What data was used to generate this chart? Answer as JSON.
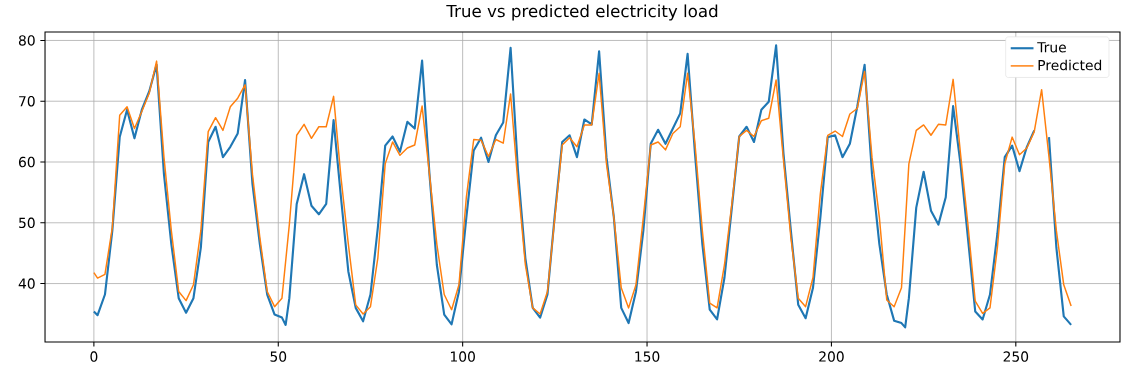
{
  "chart_data": {
    "type": "line",
    "title": "True vs predicted electricity load",
    "xlim": [
      -13.25,
      278.25
    ],
    "ylim": [
      30.4,
      81.4
    ],
    "xticks": [
      0,
      50,
      100,
      150,
      200,
      250
    ],
    "yticks": [
      40,
      50,
      60,
      70,
      80
    ],
    "grid": true,
    "legend": "top right",
    "marker": "none",
    "line_style": "solid",
    "series": [
      {
        "name": "True",
        "color": "#1f77b4",
        "x": [
          0,
          1,
          3,
          5,
          7,
          9,
          11,
          13,
          15,
          17,
          19,
          21,
          23,
          25,
          27,
          29,
          31,
          33,
          35,
          37,
          39,
          41,
          43,
          45,
          47,
          49,
          51,
          52,
          53,
          55,
          57,
          59,
          61,
          63,
          65,
          67,
          69,
          71,
          73,
          75,
          77,
          79,
          81,
          83,
          85,
          87,
          89,
          91,
          93,
          95,
          97,
          99,
          101,
          103,
          105,
          107,
          109,
          111,
          113,
          115,
          117,
          119,
          121,
          123,
          125,
          127,
          129,
          131,
          133,
          135,
          137,
          139,
          141,
          143,
          145,
          147,
          149,
          151,
          153,
          155,
          157,
          159,
          161,
          163,
          165,
          167,
          169,
          171,
          173,
          175,
          177,
          179,
          181,
          183,
          185,
          187,
          189,
          191,
          193,
          195,
          197,
          199,
          201,
          203,
          205,
          207,
          209,
          211,
          213,
          215,
          217,
          219,
          220,
          221,
          223,
          225,
          227,
          229,
          231,
          233,
          235,
          237,
          239,
          241,
          243,
          245,
          247,
          249,
          251,
          253,
          255,
          257,
          259,
          261,
          263,
          265
        ],
        "values": [
          35.4,
          34.8,
          38.2,
          48.7,
          64.1,
          68.6,
          63.9,
          68.6,
          71.6,
          76,
          58,
          46.5,
          37.6,
          35.2,
          37.6,
          45.9,
          63.3,
          65.8,
          60.8,
          62.5,
          64.7,
          73.5,
          56.4,
          46.5,
          38.2,
          34.9,
          34.4,
          33.2,
          37.6,
          53.1,
          58,
          52.8,
          51.4,
          53.1,
          66.9,
          54.2,
          42,
          36,
          33.8,
          38.2,
          49.2,
          62.7,
          64.2,
          61.7,
          66.6,
          65.5,
          76.7,
          58,
          43.1,
          34.9,
          33.3,
          38.7,
          50.9,
          61.9,
          64,
          60,
          64.4,
          66.5,
          78.8,
          58.6,
          44.2,
          36,
          34.4,
          38.2,
          51.4,
          63.3,
          64.4,
          60.8,
          67,
          66.2,
          78.2,
          60.8,
          50.9,
          36,
          33.5,
          38.7,
          48.7,
          63,
          65.3,
          63,
          65.5,
          68,
          77.8,
          61.4,
          46.5,
          35.7,
          34.1,
          41,
          52.5,
          64.2,
          65.8,
          63.3,
          68.6,
          69.9,
          79.2,
          61.4,
          48.7,
          36.5,
          34.3,
          39.3,
          50.9,
          64.1,
          64.4,
          60.8,
          63,
          69.1,
          76,
          58,
          46.5,
          38.2,
          33.9,
          33.5,
          32.8,
          37.6,
          52.5,
          58.4,
          52,
          49.7,
          54.2,
          69.2,
          59.7,
          47.6,
          35.4,
          34.1,
          38.2,
          48.2,
          60.8,
          62.7,
          58.5,
          62.5,
          65.2,
          null,
          64.1,
          45.9,
          34.6,
          33.2
        ]
      },
      {
        "name": "Predicted",
        "color": "#ff7f0e",
        "x": [
          0,
          1,
          3,
          5,
          7,
          9,
          11,
          13,
          15,
          17,
          19,
          21,
          23,
          25,
          27,
          29,
          31,
          33,
          35,
          37,
          39,
          41,
          43,
          45,
          47,
          49,
          51,
          53,
          55,
          57,
          59,
          61,
          63,
          65,
          67,
          69,
          71,
          73,
          75,
          77,
          79,
          81,
          83,
          85,
          87,
          89,
          91,
          93,
          95,
          97,
          99,
          101,
          103,
          105,
          107,
          109,
          111,
          113,
          115,
          117,
          119,
          121,
          123,
          125,
          127,
          129,
          131,
          133,
          135,
          137,
          139,
          141,
          143,
          145,
          147,
          149,
          151,
          153,
          155,
          157,
          159,
          161,
          163,
          165,
          167,
          169,
          171,
          173,
          175,
          177,
          179,
          181,
          183,
          185,
          187,
          189,
          191,
          193,
          195,
          197,
          199,
          201,
          203,
          205,
          207,
          209,
          211,
          213,
          215,
          217,
          219,
          221,
          223,
          225,
          227,
          229,
          231,
          233,
          235,
          237,
          239,
          241,
          243,
          245,
          247,
          249,
          251,
          253,
          255,
          257,
          259,
          261,
          263,
          265
        ],
        "values": [
          41.8,
          40.9,
          41.5,
          49.2,
          67.7,
          69.1,
          65.5,
          68.3,
          71.3,
          76.6,
          60.8,
          48.7,
          38.7,
          37.2,
          39.8,
          48.7,
          65,
          67.3,
          65.2,
          69.1,
          70.5,
          72.7,
          58,
          47.6,
          38.7,
          36.2,
          37.6,
          49.7,
          64.4,
          66.2,
          63.9,
          65.8,
          65.8,
          70.8,
          57.5,
          46.5,
          36.5,
          35,
          36.2,
          44.2,
          59.7,
          63.3,
          61.1,
          62.3,
          62.8,
          69.2,
          58,
          46.5,
          38.2,
          35.7,
          39.8,
          54.2,
          63.7,
          63.6,
          60.9,
          63.7,
          63.1,
          71.2,
          56.4,
          43.1,
          36,
          35,
          38.7,
          50.9,
          62.8,
          64,
          62.5,
          66.1,
          66.1,
          74.6,
          59.7,
          50.9,
          39.3,
          36,
          39.8,
          50.9,
          62.8,
          63.3,
          62,
          64.7,
          65.8,
          74.6,
          63,
          48.7,
          36.8,
          36,
          43.1,
          53.1,
          64.2,
          65.2,
          64.2,
          66.8,
          67.2,
          73.5,
          60.3,
          47.6,
          37.6,
          36.2,
          41,
          54.8,
          64.4,
          65.1,
          64.2,
          67.9,
          68.8,
          74.9,
          60.8,
          50.9,
          37.3,
          36.2,
          39.3,
          59.7,
          65.2,
          66.1,
          64.4,
          66.2,
          66.1,
          73.6,
          61.4,
          49.8,
          37.1,
          35.1,
          36,
          45.9,
          59.7,
          64.1,
          61.2,
          62.3,
          65,
          71.9,
          60.8,
          48.7,
          39.8,
          36.3
        ]
      }
    ]
  }
}
